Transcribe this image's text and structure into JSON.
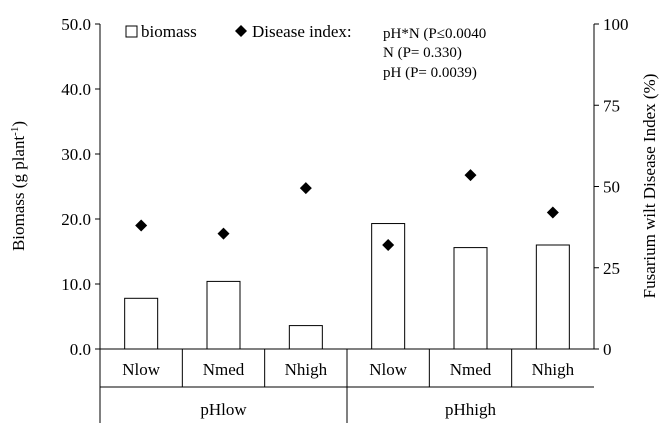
{
  "chart_data": {
    "type": "bar",
    "categories": [
      "Nlow",
      "Nmed",
      "Nhigh",
      "Nlow",
      "Nmed",
      "Nhigh"
    ],
    "groups": [
      {
        "label": "pHlow",
        "categories": [
          0,
          1,
          2
        ]
      },
      {
        "label": "pHhigh",
        "categories": [
          3,
          4,
          5
        ]
      }
    ],
    "ylabel_left": {
      "main": "Biomass (g plant",
      "sup": "-1",
      "close": ")"
    },
    "ylabel_right": "Fusarium wilt Disease Index (%)",
    "ylim_left": [
      0,
      50
    ],
    "ylim_right": [
      0,
      100
    ],
    "yticks_left": [
      "0.0",
      "10.0",
      "20.0",
      "30.0",
      "40.0",
      "50.0"
    ],
    "yticks_right": [
      "0",
      "25",
      "50",
      "75",
      "100"
    ],
    "series": [
      {
        "name": "biomass",
        "kind": "bar",
        "axis": "left",
        "values": [
          7.8,
          10.4,
          3.6,
          19.3,
          15.6,
          16.0
        ],
        "color": "#ffffff",
        "stroke": "#000000"
      },
      {
        "name": "Disease index",
        "kind": "scatter",
        "axis": "right",
        "marker": "diamond",
        "values": [
          38.0,
          35.5,
          49.5,
          32.0,
          53.5,
          42.0
        ],
        "color": "#000000"
      }
    ],
    "legend": {
      "position": "top-left",
      "items": [
        "biomass",
        "Disease index:"
      ]
    },
    "stats": [
      "pH*N (P≤0.0040",
      "N (P= 0.330)",
      "pH (P= 0.0039)"
    ],
    "grid": false
  }
}
